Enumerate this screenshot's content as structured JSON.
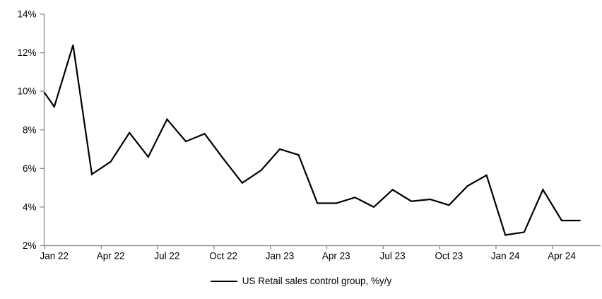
{
  "chart_data": {
    "type": "line",
    "title": "",
    "xlabel": "",
    "ylabel": "",
    "categories": [
      "Jan 22",
      "Feb 22",
      "Mar 22",
      "Apr 22",
      "May 22",
      "Jun 22",
      "Jul 22",
      "Aug 22",
      "Sep 22",
      "Oct 22",
      "Nov 22",
      "Dec 22",
      "Jan 23",
      "Feb 23",
      "Mar 23",
      "Apr 23",
      "May 23",
      "Jun 23",
      "Jul 23",
      "Aug 23",
      "Sep 23",
      "Oct 23",
      "Nov 23",
      "Dec 23",
      "Jan 24",
      "Feb 24",
      "Mar 24",
      "Apr 24",
      "May 24"
    ],
    "series": [
      {
        "name": "US Retail sales control group, %y/y",
        "color": "#000000",
        "values": [
          9.2,
          12.4,
          5.7,
          6.35,
          7.85,
          6.6,
          8.55,
          7.4,
          7.8,
          6.5,
          5.25,
          5.9,
          7.0,
          6.7,
          4.2,
          4.2,
          4.5,
          4.0,
          4.9,
          4.3,
          4.4,
          4.1,
          5.1,
          5.65,
          2.55,
          2.7,
          4.9,
          3.3,
          3.3
        ],
        "enters_plot_at_left_edge_value": 9.95
      }
    ],
    "ylim": [
      2,
      14
    ],
    "y_tick_step": 2,
    "y_tick_labels": [
      "2%",
      "4%",
      "6%",
      "8%",
      "10%",
      "12%",
      "14%"
    ],
    "x_tick_labels": [
      "Jan 22",
      "Apr 22",
      "Jul 22",
      "Oct 22",
      "Jan 23",
      "Apr 23",
      "Jul 23",
      "Oct 23",
      "Jan 24",
      "Apr 24"
    ],
    "x_tick_interval_months": 3,
    "grid": false,
    "legend_position": "bottom-center",
    "axis_color": "#8c8c8c",
    "tick_label_color": "#000000"
  },
  "legend": {
    "series_label": "US Retail sales control group, %y/y"
  }
}
